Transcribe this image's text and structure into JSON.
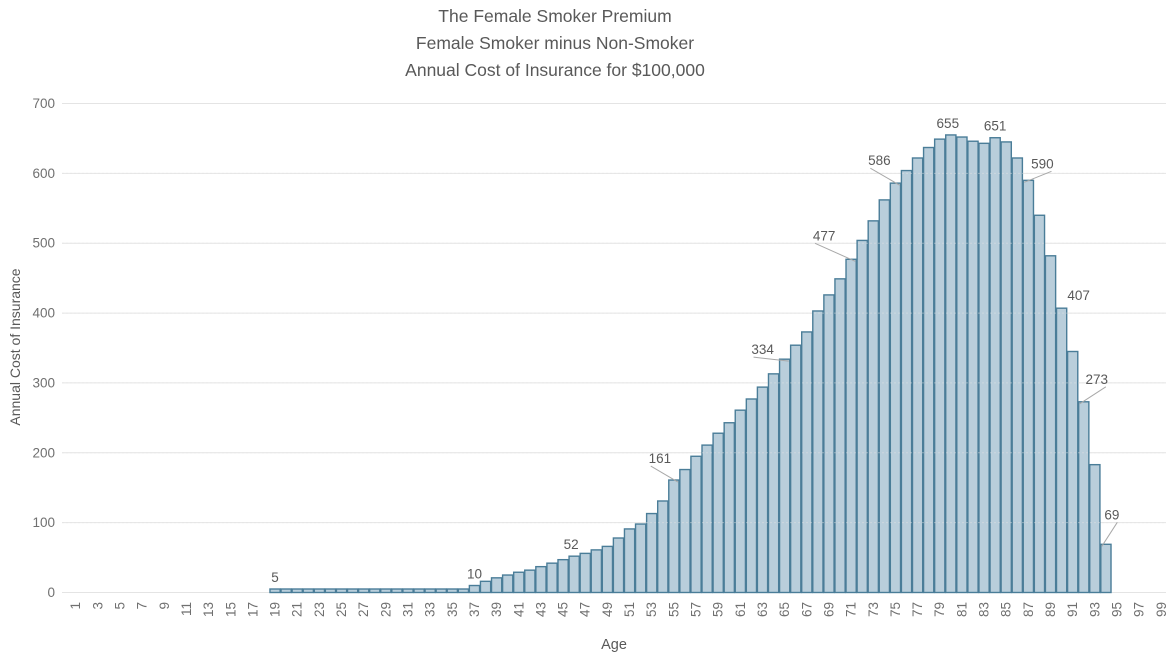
{
  "chart_data": {
    "type": "bar",
    "title_lines": [
      "The Female Smoker Premium",
      "Female Smoker minus Non-Smoker",
      "Annual Cost of Insurance for $100,000"
    ],
    "xlabel": "Age",
    "ylabel": "Annual Cost of Insurance",
    "ylim": [
      0,
      700
    ],
    "y_ticks": [
      0,
      100,
      200,
      300,
      400,
      500,
      600,
      700
    ],
    "x_ticks": [
      1,
      3,
      5,
      7,
      9,
      11,
      13,
      15,
      17,
      19,
      21,
      23,
      25,
      27,
      29,
      31,
      33,
      35,
      37,
      39,
      41,
      43,
      45,
      47,
      49,
      51,
      53,
      55,
      57,
      59,
      61,
      63,
      65,
      67,
      69,
      71,
      73,
      75,
      77,
      79,
      81,
      83,
      85,
      87,
      89,
      91,
      93,
      95,
      97,
      99
    ],
    "grid": "horizontal",
    "legend": "none",
    "bars": {
      "start_age": 19,
      "end_age": 94,
      "values": [
        5,
        5,
        5,
        5,
        5,
        5,
        5,
        5,
        5,
        5,
        5,
        5,
        5,
        5,
        5,
        5,
        5,
        5,
        10,
        16,
        21,
        25,
        29,
        32,
        37,
        42,
        47,
        52,
        56,
        61,
        66,
        78,
        91,
        98,
        113,
        131,
        161,
        176,
        195,
        211,
        228,
        243,
        261,
        277,
        294,
        313,
        334,
        354,
        373,
        403,
        426,
        449,
        477,
        504,
        532,
        562,
        586,
        604,
        622,
        637,
        649,
        655,
        652,
        646,
        643,
        651,
        645,
        622,
        590,
        540,
        482,
        407,
        345,
        273,
        183,
        69
      ]
    },
    "data_labels": [
      {
        "age": 19,
        "value": 5
      },
      {
        "age": 37,
        "value": 10
      },
      {
        "age": 46,
        "value": 52
      },
      {
        "age": 55,
        "value": 161
      },
      {
        "age": 65,
        "value": 334
      },
      {
        "age": 71,
        "value": 477
      },
      {
        "age": 75,
        "value": 586
      },
      {
        "age": 80,
        "value": 655
      },
      {
        "age": 84,
        "value": 651
      },
      {
        "age": 87,
        "value": 590
      },
      {
        "age": 90,
        "value": 407
      },
      {
        "age": 92,
        "value": 273
      },
      {
        "age": 94,
        "value": 69
      }
    ],
    "colors": {
      "bar_fill": "#b9cedb",
      "bar_stroke": "#4a7d98",
      "grid": "#e4e4e4",
      "title_text": "#595959",
      "tick_text": "#707070",
      "label_text": "#595959",
      "leader": "#a8a8a8",
      "background": "#ffffff"
    }
  }
}
